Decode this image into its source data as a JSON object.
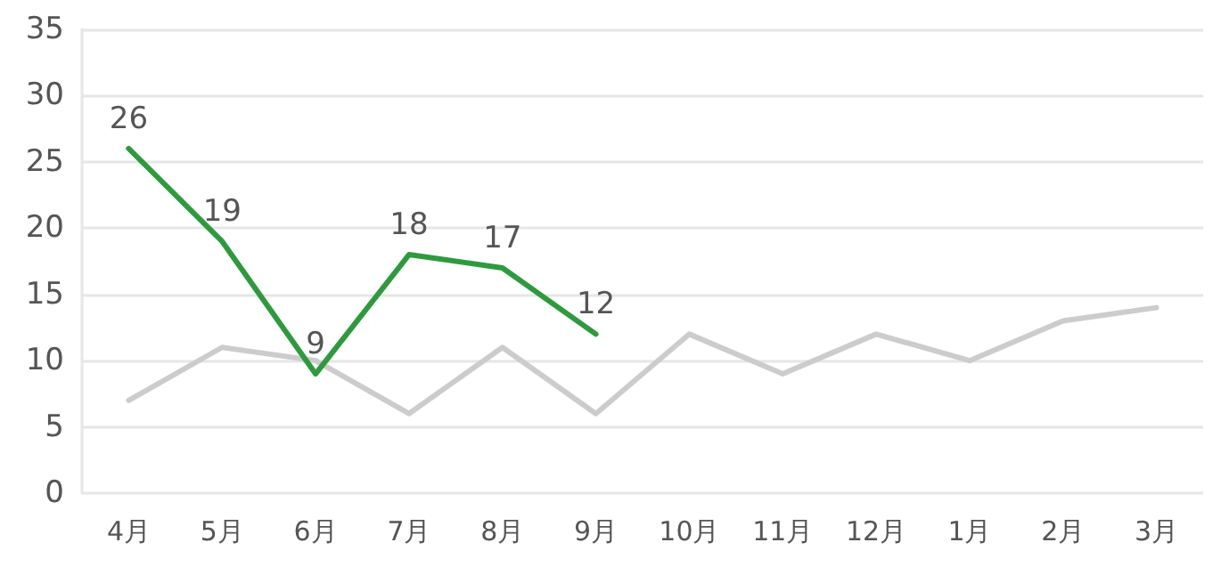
{
  "chart_data": {
    "type": "line",
    "categories": [
      "4月",
      "5月",
      "6月",
      "7月",
      "8月",
      "9月",
      "10月",
      "11月",
      "12月",
      "1月",
      "2月",
      "3月"
    ],
    "series": [
      {
        "color": "#cccccc",
        "values": [
          7,
          11,
          10,
          6,
          11,
          6,
          12,
          9,
          12,
          10,
          13,
          14
        ]
      },
      {
        "color": "#2e9a3e",
        "values": [
          26,
          19,
          9,
          18,
          17,
          12,
          null,
          null,
          null,
          null,
          null,
          null
        ],
        "value_labels": [
          "26",
          "19",
          "9",
          "18",
          "17",
          "12",
          null,
          null,
          null,
          null,
          null,
          null
        ]
      }
    ],
    "ylim": [
      0,
      35
    ],
    "yticks": [
      0,
      5,
      10,
      15,
      20,
      25,
      30,
      35
    ],
    "grid": "y",
    "marker": "none",
    "line_style": "solid"
  }
}
